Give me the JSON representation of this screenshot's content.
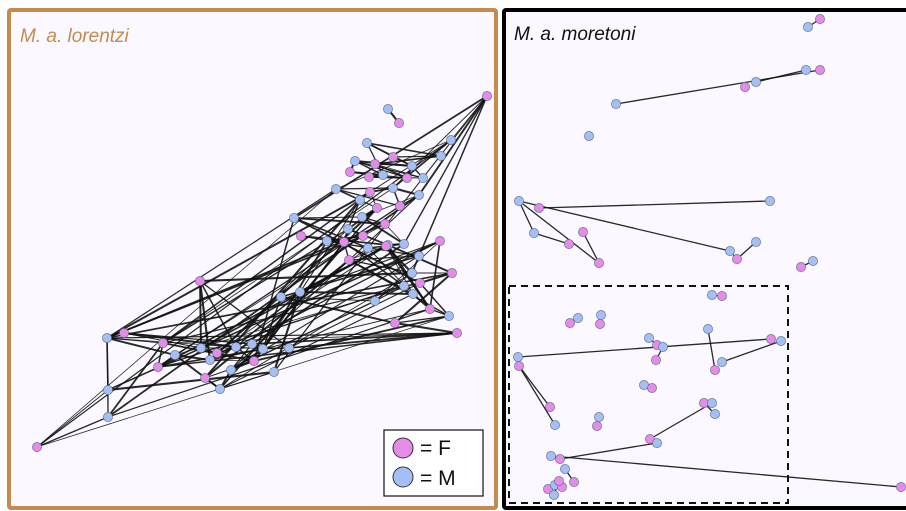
{
  "colors": {
    "female": "#e58be8",
    "male": "#a5bff2",
    "node_stroke": "#5a6a8a",
    "edge": "#111111",
    "panel_bg": "#fbf9ff",
    "lorentzi_border": "#c58a4e",
    "moretoni_border": "#000000"
  },
  "panels": [
    {
      "id": "lorentzi",
      "title": "M. a. lorentzi",
      "nodes": [
        {
          "id": 1,
          "sex": "F"
        },
        {
          "id": 2,
          "sex": "M"
        },
        {
          "id": 3,
          "sex": "F"
        },
        {
          "id": 4,
          "sex": "M"
        },
        {
          "id": 5,
          "sex": "F"
        },
        {
          "id": 6,
          "sex": "M"
        },
        {
          "id": 7,
          "sex": "M"
        },
        {
          "id": 8,
          "sex": "F"
        },
        {
          "id": 9,
          "sex": "M"
        },
        {
          "id": 10,
          "sex": "F"
        },
        {
          "id": 11,
          "sex": "M"
        },
        {
          "id": 12,
          "sex": "F"
        },
        {
          "id": 13,
          "sex": "M"
        },
        {
          "id": 14,
          "sex": "F"
        },
        {
          "id": 15,
          "sex": "M"
        },
        {
          "id": 16,
          "sex": "M"
        },
        {
          "id": 17,
          "sex": "F"
        },
        {
          "id": 18,
          "sex": "M"
        },
        {
          "id": 19,
          "sex": "F"
        },
        {
          "id": 20,
          "sex": "M"
        },
        {
          "id": 21,
          "sex": "M"
        },
        {
          "id": 22,
          "sex": "F"
        },
        {
          "id": 23,
          "sex": "M"
        },
        {
          "id": 24,
          "sex": "F"
        },
        {
          "id": 25,
          "sex": "M"
        },
        {
          "id": 26,
          "sex": "M"
        },
        {
          "id": 27,
          "sex": "F"
        },
        {
          "id": 28,
          "sex": "M"
        },
        {
          "id": 29,
          "sex": "F"
        },
        {
          "id": 30,
          "sex": "M"
        },
        {
          "id": 31,
          "sex": "M"
        },
        {
          "id": 32,
          "sex": "F"
        },
        {
          "id": 33,
          "sex": "M"
        },
        {
          "id": 34,
          "sex": "M"
        },
        {
          "id": 35,
          "sex": "F"
        },
        {
          "id": 36,
          "sex": "M"
        },
        {
          "id": 37,
          "sex": "F"
        },
        {
          "id": 38,
          "sex": "M"
        },
        {
          "id": 39,
          "sex": "F"
        },
        {
          "id": 40,
          "sex": "F"
        },
        {
          "id": 41,
          "sex": "M"
        },
        {
          "id": 42,
          "sex": "M"
        },
        {
          "id": 43,
          "sex": "F"
        },
        {
          "id": 44,
          "sex": "F"
        },
        {
          "id": 45,
          "sex": "M"
        },
        {
          "id": 46,
          "sex": "M"
        },
        {
          "id": 47,
          "sex": "F"
        },
        {
          "id": 48,
          "sex": "M"
        },
        {
          "id": 49,
          "sex": "F"
        },
        {
          "id": 50,
          "sex": "M"
        },
        {
          "id": 51,
          "sex": "F"
        },
        {
          "id": 52,
          "sex": "M"
        },
        {
          "id": 53,
          "sex": "M"
        },
        {
          "id": 54,
          "sex": "F"
        },
        {
          "id": 55,
          "sex": "F"
        },
        {
          "id": 56,
          "sex": "M"
        },
        {
          "id": 57,
          "sex": "M"
        },
        {
          "id": 58,
          "sex": "F"
        },
        {
          "id": 59,
          "sex": "M"
        },
        {
          "id": 60,
          "sex": "F"
        },
        {
          "id": 61,
          "sex": "M"
        },
        {
          "id": 62,
          "sex": "M"
        },
        {
          "id": 63,
          "sex": "F"
        },
        {
          "id": 64,
          "sex": "M"
        },
        {
          "id": 65,
          "sex": "F"
        },
        {
          "id": 66,
          "sex": "M"
        },
        {
          "id": 67,
          "sex": "M"
        },
        {
          "id": 68,
          "sex": "M"
        },
        {
          "id": 69,
          "sex": "M"
        },
        {
          "id": 70,
          "sex": "F"
        }
      ],
      "edges": [
        [
          1,
          15
        ],
        [
          1,
          25
        ],
        [
          1,
          30
        ],
        [
          1,
          18
        ],
        [
          1,
          20
        ],
        [
          1,
          34
        ],
        [
          1,
          31
        ],
        [
          2,
          3
        ],
        [
          4,
          7
        ],
        [
          4,
          11
        ],
        [
          4,
          5
        ],
        [
          4,
          9
        ],
        [
          5,
          7
        ],
        [
          5,
          9
        ],
        [
          6,
          9
        ],
        [
          6,
          11
        ],
        [
          6,
          12
        ],
        [
          6,
          10
        ],
        [
          7,
          8
        ],
        [
          8,
          9
        ],
        [
          8,
          13
        ],
        [
          9,
          12
        ],
        [
          9,
          13
        ],
        [
          10,
          12
        ],
        [
          11,
          14
        ],
        [
          12,
          14
        ],
        [
          13,
          14
        ],
        [
          10,
          11
        ],
        [
          8,
          12
        ],
        [
          6,
          13
        ],
        [
          15,
          16
        ],
        [
          15,
          18
        ],
        [
          16,
          18
        ],
        [
          15,
          17
        ],
        [
          17,
          18
        ],
        [
          18,
          19
        ],
        [
          19,
          20
        ],
        [
          18,
          20
        ],
        [
          16,
          21
        ],
        [
          21,
          22
        ],
        [
          20,
          23
        ],
        [
          22,
          23
        ],
        [
          23,
          24
        ],
        [
          23,
          25
        ],
        [
          24,
          25
        ],
        [
          21,
          26
        ],
        [
          26,
          27
        ],
        [
          27,
          28
        ],
        [
          26,
          29
        ],
        [
          28,
          29
        ],
        [
          24,
          27
        ],
        [
          22,
          26
        ],
        [
          16,
          19
        ],
        [
          17,
          22
        ],
        [
          23,
          30
        ],
        [
          30,
          31
        ],
        [
          31,
          32
        ],
        [
          30,
          33
        ],
        [
          32,
          33
        ],
        [
          34,
          35
        ],
        [
          33,
          35
        ],
        [
          34,
          36
        ],
        [
          35,
          36
        ],
        [
          36,
          37
        ],
        [
          33,
          37
        ],
        [
          29,
          38
        ],
        [
          38,
          39
        ],
        [
          37,
          39
        ],
        [
          25,
          31
        ],
        [
          28,
          34
        ],
        [
          24,
          30
        ],
        [
          26,
          33
        ],
        [
          29,
          35
        ],
        [
          40,
          41
        ],
        [
          41,
          42
        ],
        [
          40,
          42
        ],
        [
          42,
          43
        ],
        [
          41,
          44
        ],
        [
          43,
          44
        ],
        [
          44,
          45
        ],
        [
          43,
          46
        ],
        [
          40,
          44
        ],
        [
          45,
          47
        ],
        [
          46,
          48
        ],
        [
          47,
          48
        ],
        [
          39,
          45
        ],
        [
          38,
          46
        ],
        [
          36,
          40
        ],
        [
          35,
          41
        ],
        [
          49,
          57
        ],
        [
          49,
          58
        ],
        [
          49,
          50
        ],
        [
          50,
          51
        ],
        [
          50,
          52
        ],
        [
          51,
          52
        ],
        [
          51,
          53
        ],
        [
          52,
          54
        ],
        [
          53,
          54
        ],
        [
          53,
          55
        ],
        [
          54,
          56
        ],
        [
          55,
          56
        ],
        [
          49,
          56
        ],
        [
          52,
          55
        ],
        [
          57,
          58
        ],
        [
          57,
          59
        ],
        [
          58,
          60
        ],
        [
          59,
          60
        ],
        [
          59,
          61
        ],
        [
          60,
          62
        ],
        [
          61,
          62
        ],
        [
          61,
          63
        ],
        [
          62,
          64
        ],
        [
          63,
          64
        ],
        [
          63,
          65
        ],
        [
          64,
          66
        ],
        [
          65,
          66
        ],
        [
          66,
          67
        ],
        [
          67,
          68
        ],
        [
          68,
          57
        ],
        [
          68,
          69
        ],
        [
          69,
          57
        ],
        [
          69,
          58
        ],
        [
          70,
          69
        ],
        [
          70,
          68
        ],
        [
          66,
          59
        ],
        [
          60,
          49
        ],
        [
          62,
          50
        ],
        [
          61,
          51
        ],
        [
          63,
          53
        ],
        [
          64,
          56
        ],
        [
          57,
          62
        ],
        [
          58,
          63
        ],
        [
          60,
          38
        ],
        [
          61,
          33
        ],
        [
          49,
          47
        ],
        [
          48,
          62
        ],
        [
          50,
          39
        ],
        [
          51,
          36
        ],
        [
          52,
          40
        ],
        [
          53,
          42
        ],
        [
          55,
          31
        ],
        [
          56,
          30
        ],
        [
          60,
          19
        ],
        [
          61,
          26
        ],
        [
          62,
          29
        ],
        [
          63,
          29
        ],
        [
          64,
          34
        ],
        [
          65,
          35
        ],
        [
          57,
          37
        ],
        [
          58,
          38
        ],
        [
          59,
          39
        ],
        [
          60,
          40
        ],
        [
          61,
          43
        ],
        [
          62,
          44
        ],
        [
          63,
          45
        ],
        [
          64,
          46
        ],
        [
          66,
          41
        ],
        [
          67,
          42
        ],
        [
          68,
          43
        ],
        [
          69,
          44
        ],
        [
          70,
          45
        ],
        [
          57,
          24
        ],
        [
          58,
          26
        ],
        [
          59,
          27
        ],
        [
          62,
          28
        ],
        [
          63,
          25
        ],
        [
          64,
          20
        ],
        [
          65,
          21
        ],
        [
          66,
          22
        ],
        [
          70,
          15
        ],
        [
          70,
          16
        ],
        [
          69,
          20
        ],
        [
          67,
          31
        ],
        [
          66,
          36
        ],
        [
          17,
          57
        ],
        [
          17,
          58
        ],
        [
          21,
          62
        ],
        [
          22,
          61
        ],
        [
          27,
          57
        ],
        [
          16,
          57
        ],
        [
          18,
          58
        ],
        [
          25,
          39
        ],
        [
          30,
          40
        ],
        [
          31,
          41
        ],
        [
          33,
          44
        ],
        [
          35,
          45
        ],
        [
          36,
          46
        ],
        [
          37,
          47
        ],
        [
          34,
          48
        ]
      ]
    },
    {
      "id": "moretoni",
      "title": "M. a. moretoni",
      "nodes": [
        {
          "id": 1,
          "sex": "F"
        },
        {
          "id": 2,
          "sex": "M"
        },
        {
          "id": 3,
          "sex": "F"
        },
        {
          "id": 4,
          "sex": "M"
        },
        {
          "id": 5,
          "sex": "M"
        },
        {
          "id": 6,
          "sex": "F"
        },
        {
          "id": 7,
          "sex": "M"
        },
        {
          "id": 8,
          "sex": "M"
        },
        {
          "id": 9,
          "sex": "M"
        },
        {
          "id": 10,
          "sex": "F"
        },
        {
          "id": 11,
          "sex": "M"
        },
        {
          "id": 12,
          "sex": "M"
        },
        {
          "id": 13,
          "sex": "F"
        },
        {
          "id": 14,
          "sex": "F"
        },
        {
          "id": 15,
          "sex": "F"
        },
        {
          "id": 16,
          "sex": "M"
        },
        {
          "id": 17,
          "sex": "M"
        },
        {
          "id": 18,
          "sex": "F"
        },
        {
          "id": 19,
          "sex": "F"
        },
        {
          "id": 20,
          "sex": "M"
        },
        {
          "id": 21,
          "sex": "M"
        },
        {
          "id": 22,
          "sex": "F"
        },
        {
          "id": 23,
          "sex": "M"
        },
        {
          "id": 24,
          "sex": "F"
        },
        {
          "id": 25,
          "sex": "F"
        },
        {
          "id": 26,
          "sex": "M"
        },
        {
          "id": 27,
          "sex": "M"
        },
        {
          "id": 28,
          "sex": "F"
        },
        {
          "id": 29,
          "sex": "M"
        },
        {
          "id": 30,
          "sex": "F"
        },
        {
          "id": 31,
          "sex": "M"
        },
        {
          "id": 32,
          "sex": "F"
        },
        {
          "id": 33,
          "sex": "M"
        },
        {
          "id": 34,
          "sex": "M"
        },
        {
          "id": 35,
          "sex": "F"
        },
        {
          "id": 36,
          "sex": "M"
        },
        {
          "id": 37,
          "sex": "F"
        },
        {
          "id": 38,
          "sex": "F"
        },
        {
          "id": 39,
          "sex": "M"
        },
        {
          "id": 40,
          "sex": "M"
        },
        {
          "id": 41,
          "sex": "F"
        },
        {
          "id": 42,
          "sex": "M"
        },
        {
          "id": 43,
          "sex": "F"
        },
        {
          "id": 44,
          "sex": "F"
        },
        {
          "id": 45,
          "sex": "M"
        },
        {
          "id": 46,
          "sex": "M"
        },
        {
          "id": 47,
          "sex": "F"
        },
        {
          "id": 48,
          "sex": "M"
        },
        {
          "id": 49,
          "sex": "F"
        },
        {
          "id": 50,
          "sex": "F"
        },
        {
          "id": 51,
          "sex": "M"
        },
        {
          "id": 52,
          "sex": "F"
        },
        {
          "id": 53,
          "sex": "M"
        },
        {
          "id": 54,
          "sex": "F"
        },
        {
          "id": 55,
          "sex": "M"
        },
        {
          "id": 56,
          "sex": "F"
        },
        {
          "id": 57,
          "sex": "M"
        },
        {
          "id": 58,
          "sex": "F"
        }
      ],
      "edges": [
        [
          1,
          2
        ],
        [
          4,
          5
        ],
        [
          6,
          7
        ],
        [
          9,
          10
        ],
        [
          11,
          12
        ],
        [
          11,
          15
        ],
        [
          11,
          16
        ],
        [
          12,
          13
        ],
        [
          14,
          15
        ],
        [
          16,
          18
        ],
        [
          17,
          18
        ],
        [
          19,
          20
        ],
        [
          21,
          22
        ],
        [
          23,
          24
        ],
        [
          25,
          26
        ],
        [
          27,
          28
        ],
        [
          29,
          30
        ],
        [
          31,
          32
        ],
        [
          33,
          34
        ],
        [
          35,
          36
        ],
        [
          37,
          38
        ],
        [
          37,
          39
        ],
        [
          40,
          41
        ],
        [
          42,
          43
        ],
        [
          44,
          45
        ],
        [
          46,
          47
        ],
        [
          48,
          49
        ],
        [
          50,
          51
        ],
        [
          52,
          53
        ],
        [
          53,
          54
        ],
        [
          55,
          56
        ],
        [
          57,
          58
        ]
      ]
    }
  ],
  "legend": {
    "female_label": "=  F",
    "male_label": "=  M"
  }
}
